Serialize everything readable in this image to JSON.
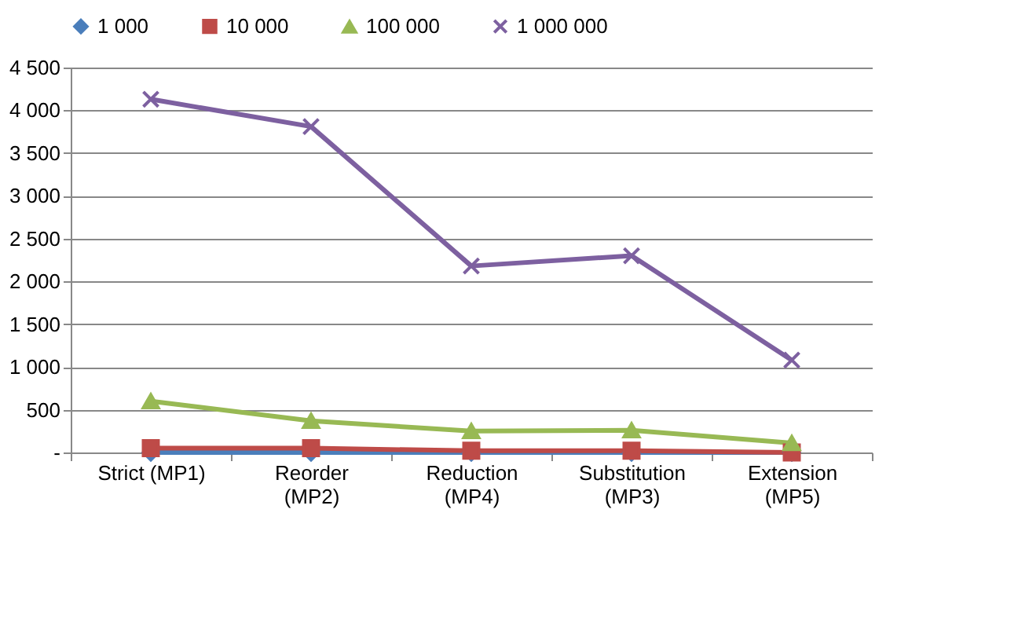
{
  "chart_data": {
    "type": "line",
    "categories": [
      "Strict (MP1)",
      "Reorder (MP2)",
      "Reduction (MP4)",
      "Substitution (MP3)",
      "Extension (MP5)"
    ],
    "series": [
      {
        "name": "1 000",
        "color": "#4a7ebb",
        "marker": "diamond",
        "values": [
          0,
          0,
          0,
          0,
          0
        ]
      },
      {
        "name": "10 000",
        "color": "#be4b48",
        "marker": "square",
        "values": [
          50,
          50,
          20,
          20,
          0
        ]
      },
      {
        "name": "100 000",
        "color": "#98b954",
        "marker": "triangle",
        "values": [
          600,
          370,
          250,
          260,
          110
        ]
      },
      {
        "name": "1 000 000",
        "color": "#7d60a0",
        "marker": "cross",
        "values": [
          4130,
          3810,
          2180,
          2300,
          1080
        ]
      }
    ],
    "ylim": [
      0,
      4500
    ],
    "yticks": [
      {
        "value": 0,
        "label": "-"
      },
      {
        "value": 500,
        "label": "500"
      },
      {
        "value": 1000,
        "label": "1 000"
      },
      {
        "value": 1500,
        "label": "1 500"
      },
      {
        "value": 2000,
        "label": "2 000"
      },
      {
        "value": 2500,
        "label": "2 500"
      },
      {
        "value": 3000,
        "label": "3 000"
      },
      {
        "value": 3500,
        "label": "3 500"
      },
      {
        "value": 4000,
        "label": "4 000"
      },
      {
        "value": 4500,
        "label": "4 500"
      }
    ],
    "grid": "y",
    "legend": "top",
    "line_style": "solid"
  }
}
